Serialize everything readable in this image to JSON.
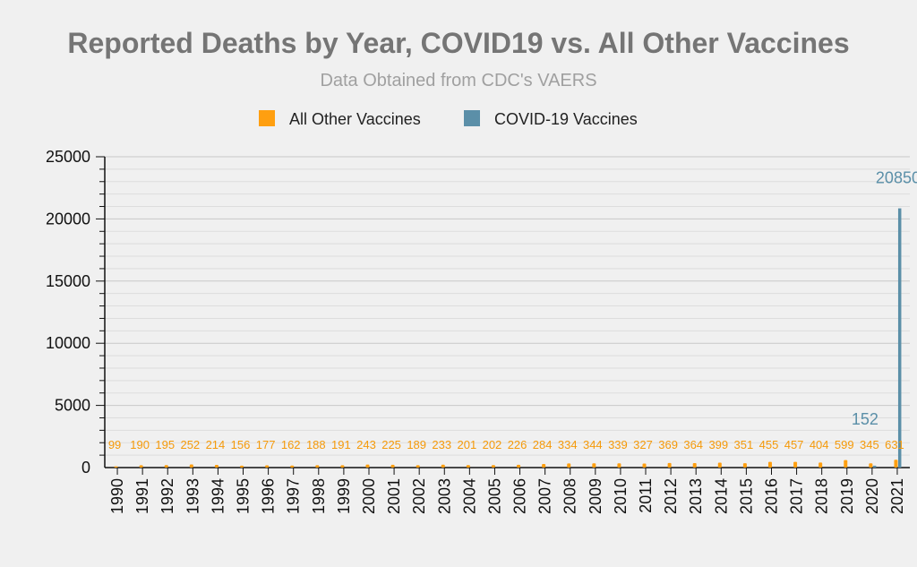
{
  "chart_data": {
    "type": "bar",
    "title": "Reported Deaths by Year, COVID19 vs. All Other Vaccines",
    "subtitle": "Data Obtained from CDC's VAERS",
    "categories": [
      "1990",
      "1991",
      "1992",
      "1993",
      "1994",
      "1995",
      "1996",
      "1997",
      "1998",
      "1999",
      "2000",
      "2001",
      "2002",
      "2003",
      "2004",
      "2005",
      "2006",
      "2007",
      "2008",
      "2009",
      "2010",
      "2011",
      "2012",
      "2013",
      "2014",
      "2015",
      "2016",
      "2017",
      "2018",
      "2019",
      "2020",
      "2021"
    ],
    "series": [
      {
        "name": "All Other Vaccines",
        "color": "#ff9f10",
        "values": [
          99,
          190,
          195,
          252,
          214,
          156,
          177,
          162,
          188,
          191,
          243,
          225,
          189,
          233,
          201,
          202,
          226,
          284,
          334,
          344,
          339,
          327,
          369,
          364,
          399,
          351,
          455,
          457,
          404,
          599,
          345,
          631
        ],
        "labels": [
          "99",
          "190",
          "195",
          "252",
          "214",
          "156",
          "177",
          "162",
          "188",
          "191",
          "243",
          "225",
          "189",
          "233",
          "201",
          "202",
          "226",
          "284",
          "334",
          "344",
          "339",
          "327",
          "369",
          "364",
          "399",
          "351",
          "455",
          "457",
          "404",
          "599",
          "345",
          "631"
        ]
      },
      {
        "name": "COVID-19 Vaccines",
        "color": "#5b8fa8",
        "values": [
          null,
          null,
          null,
          null,
          null,
          null,
          null,
          null,
          null,
          null,
          null,
          null,
          null,
          null,
          null,
          null,
          null,
          null,
          null,
          null,
          null,
          null,
          null,
          null,
          null,
          null,
          null,
          null,
          null,
          null,
          152,
          20850
        ],
        "labels": [
          "",
          "",
          "",
          "",
          "",
          "",
          "",
          "",
          "",
          "",
          "",
          "",
          "",
          "",
          "",
          "",
          "",
          "",
          "",
          "",
          "",
          "",
          "",
          "",
          "",
          "",
          "",
          "",
          "",
          "",
          "152",
          "20850"
        ]
      }
    ],
    "yticks": [
      "0",
      "5000",
      "10000",
      "15000",
      "20000",
      "25000"
    ],
    "ylim": [
      0,
      25000
    ],
    "grid": true,
    "legend": "top"
  }
}
